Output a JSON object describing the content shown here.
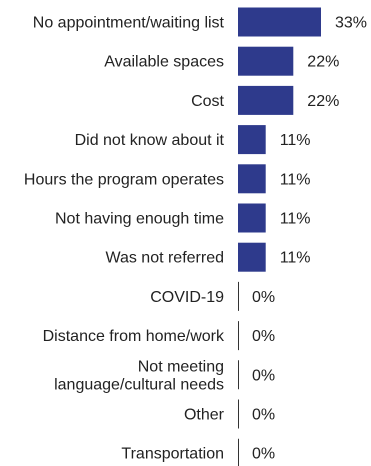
{
  "chart_data": {
    "type": "bar",
    "orientation": "horizontal",
    "categories": [
      [
        "No appointment/waiting list"
      ],
      [
        "Available spaces"
      ],
      [
        "Cost"
      ],
      [
        "Did not know about it"
      ],
      [
        "Hours the program operates"
      ],
      [
        "Not having enough time"
      ],
      [
        "Was not referred"
      ],
      [
        "COVID-19"
      ],
      [
        "Distance from home/work"
      ],
      [
        "Not meeting",
        "language/cultural needs"
      ],
      [
        "Other"
      ],
      [
        "Transportation"
      ]
    ],
    "values": [
      33,
      22,
      22,
      11,
      11,
      11,
      11,
      0,
      0,
      0,
      0,
      0
    ],
    "value_suffix": "%",
    "bar_color": "#2e3a8c",
    "axis_color": "#333333",
    "title": "",
    "xlabel": "",
    "ylabel": "",
    "xlim": [
      0,
      33
    ],
    "grid": false,
    "legend": "none"
  }
}
